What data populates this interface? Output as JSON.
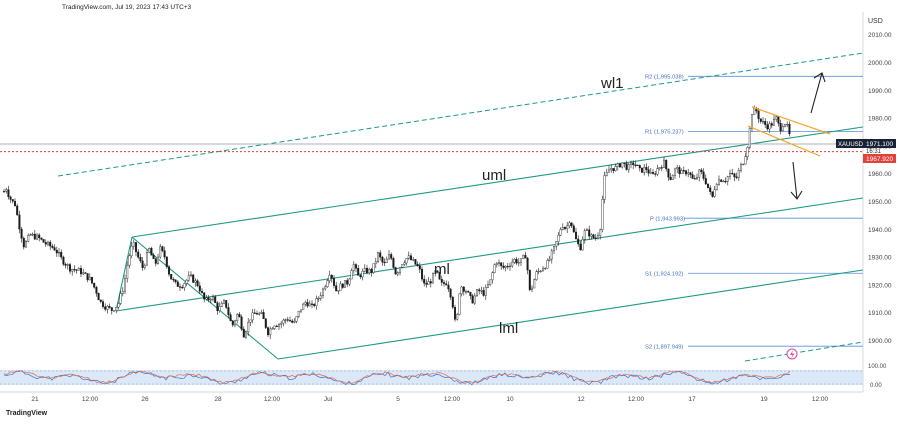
{
  "header": {
    "text": "TradingView.com, Jul 19, 2023 17:43 UTC+3"
  },
  "brand": {
    "text": "TradingView"
  },
  "chart_data": {
    "type": "candlestick",
    "symbol": "XAUUSD",
    "currency": "USD",
    "yticks": [
      1900,
      1910,
      1920,
      1930,
      1940,
      1950,
      1960,
      1970,
      1980,
      1990,
      2000,
      2010
    ],
    "ytick_labels": [
      "1900.00",
      "1910.00",
      "1920.00",
      "1930.00",
      "1940.00",
      "1950.00",
      "1960.00",
      "1970.00",
      "1980.00",
      "1990.00",
      "2000.00",
      "2010.00"
    ],
    "ylim": [
      1890.6,
      2016
    ],
    "xtick_labels": [
      "21",
      "12:00",
      "26",
      "28",
      "12:00",
      "Jul",
      "5",
      "12:00",
      "10",
      "12",
      "12:00",
      "17",
      "19",
      "12:00"
    ],
    "current_price": {
      "label": "XAUUSD",
      "value": "1971.100",
      "countdown": "16:31"
    },
    "red_level": {
      "value": 1967.92,
      "label": "1967.920"
    },
    "pivots": [
      {
        "name": "R2",
        "value": 1995.038,
        "label": "R2 (1,995.038)"
      },
      {
        "name": "R1",
        "value": 1975.237,
        "label": "R1 (1,975.237)"
      },
      {
        "name": "P",
        "value": 1943.993,
        "label": "P (1,943.993)"
      },
      {
        "name": "S1",
        "value": 1924.192,
        "label": "S1 (1,924.192)"
      },
      {
        "name": "S2",
        "value": 1897.949,
        "label": "S2 (1,897.949)"
      }
    ],
    "annotations": [
      {
        "text": "wl1"
      },
      {
        "text": "uml"
      },
      {
        "text": "ml"
      },
      {
        "text": "lml"
      }
    ],
    "oscillator": {
      "ytick_labels": [
        "100.00",
        "0.00"
      ],
      "levels": [
        100,
        0
      ]
    },
    "price_path": [
      [
        0,
        1950
      ],
      [
        3,
        1953
      ],
      [
        6,
        1955
      ],
      [
        9,
        1952
      ],
      [
        12,
        1950
      ],
      [
        15,
        1949
      ],
      [
        20,
        1940
      ],
      [
        24,
        1934
      ],
      [
        30,
        1938
      ],
      [
        38,
        1937
      ],
      [
        45,
        1935
      ],
      [
        55,
        1933
      ],
      [
        62,
        1929
      ],
      [
        70,
        1926
      ],
      [
        80,
        1925
      ],
      [
        90,
        1922
      ],
      [
        96,
        1918
      ],
      [
        100,
        1914
      ],
      [
        106,
        1912
      ],
      [
        112,
        1911
      ],
      [
        118,
        1913
      ],
      [
        124,
        1920
      ],
      [
        128,
        1929
      ],
      [
        133,
        1935
      ],
      [
        138,
        1930
      ],
      [
        143,
        1926
      ],
      [
        149,
        1933
      ],
      [
        155,
        1927
      ],
      [
        160,
        1933
      ],
      [
        165,
        1930
      ],
      [
        170,
        1923
      ],
      [
        176,
        1920
      ],
      [
        182,
        1920
      ],
      [
        190,
        1923
      ],
      [
        198,
        1920
      ],
      [
        205,
        1914
      ],
      [
        212,
        1916
      ],
      [
        218,
        1911
      ],
      [
        225,
        1914
      ],
      [
        232,
        1905
      ],
      [
        238,
        1910
      ],
      [
        244,
        1902
      ],
      [
        250,
        1908
      ],
      [
        256,
        1910
      ],
      [
        262,
        1909
      ],
      [
        268,
        1903
      ],
      [
        274,
        1906
      ],
      [
        280,
        1906
      ],
      [
        287,
        1908
      ],
      [
        294,
        1906
      ],
      [
        300,
        1911
      ],
      [
        306,
        1914
      ],
      [
        312,
        1912
      ],
      [
        318,
        1915
      ],
      [
        324,
        1919
      ],
      [
        330,
        1925
      ],
      [
        336,
        1918
      ],
      [
        342,
        1920
      ],
      [
        348,
        1921
      ],
      [
        353,
        1928
      ],
      [
        358,
        1923
      ],
      [
        365,
        1925
      ],
      [
        372,
        1925
      ],
      [
        378,
        1931
      ],
      [
        384,
        1927
      ],
      [
        390,
        1931
      ],
      [
        396,
        1924
      ],
      [
        402,
        1928
      ],
      [
        408,
        1930
      ],
      [
        414,
        1928
      ],
      [
        419,
        1926
      ],
      [
        424,
        1920
      ],
      [
        430,
        1921
      ],
      [
        436,
        1925
      ],
      [
        441,
        1920
      ],
      [
        447,
        1921
      ],
      [
        452,
        1915
      ],
      [
        456,
        1904
      ],
      [
        460,
        1920
      ],
      [
        466,
        1918
      ],
      [
        472,
        1914
      ],
      [
        478,
        1918
      ],
      [
        484,
        1917
      ],
      [
        490,
        1921
      ],
      [
        496,
        1929
      ],
      [
        502,
        1926
      ],
      [
        508,
        1927
      ],
      [
        514,
        1929
      ],
      [
        520,
        1928
      ],
      [
        526,
        1931
      ],
      [
        530,
        1917
      ],
      [
        536,
        1924
      ],
      [
        542,
        1926
      ],
      [
        548,
        1928
      ],
      [
        554,
        1933
      ],
      [
        558,
        1937
      ],
      [
        562,
        1942
      ],
      [
        566,
        1940
      ],
      [
        570,
        1944
      ],
      [
        575,
        1937
      ],
      [
        580,
        1933
      ],
      [
        584,
        1939
      ],
      [
        588,
        1939
      ],
      [
        592,
        1937
      ],
      [
        596,
        1937
      ],
      [
        600,
        1940
      ],
      [
        604,
        1958
      ],
      [
        610,
        1962
      ],
      [
        616,
        1962
      ],
      [
        622,
        1964
      ],
      [
        628,
        1962
      ],
      [
        634,
        1964
      ],
      [
        640,
        1961
      ],
      [
        646,
        1962
      ],
      [
        652,
        1959
      ],
      [
        658,
        1962
      ],
      [
        664,
        1964
      ],
      [
        670,
        1958
      ],
      [
        676,
        1962
      ],
      [
        682,
        1960
      ],
      [
        688,
        1961
      ],
      [
        694,
        1957
      ],
      [
        700,
        1961
      ],
      [
        706,
        1957
      ],
      [
        712,
        1951
      ],
      [
        716,
        1957
      ],
      [
        720,
        1958
      ],
      [
        726,
        1958
      ],
      [
        730,
        1960
      ],
      [
        736,
        1958
      ],
      [
        740,
        1962
      ],
      [
        744,
        1965
      ],
      [
        748,
        1971
      ],
      [
        752,
        1982
      ],
      [
        756,
        1983
      ],
      [
        760,
        1979
      ],
      [
        764,
        1978
      ],
      [
        768,
        1977
      ],
      [
        772,
        1978
      ],
      [
        776,
        1980
      ],
      [
        780,
        1976
      ],
      [
        784,
        1979
      ],
      [
        787,
        1977
      ],
      [
        790,
        1973
      ]
    ]
  }
}
